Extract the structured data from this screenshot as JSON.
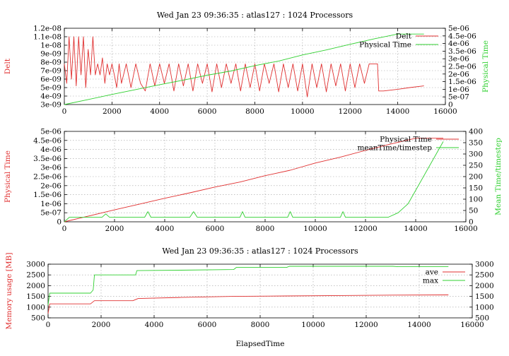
{
  "chart_data": [
    {
      "type": "line",
      "title": "Wed Jan 23 09:36:35 : atlas127 : 1024 Processors",
      "ylabel": "Delt",
      "y2label": "Physical Time",
      "xlim": [
        0,
        16000
      ],
      "ylim": [
        3e-09,
        1.2e-08
      ],
      "y2lim": [
        0,
        5e-06
      ],
      "xticks": [
        "0",
        "2000",
        "4000",
        "6000",
        "8000",
        "10000",
        "12000",
        "14000",
        "16000"
      ],
      "yticks": [
        "3e-09",
        "4e-09",
        "5e-09",
        "6e-09",
        "7e-09",
        "8e-09",
        "9e-09",
        "1e-08",
        "1.1e-08",
        "1.2e-08"
      ],
      "y2ticks": [
        "0",
        "5e-07",
        "1e-06",
        "1.5e-06",
        "2e-06",
        "2.5e-06",
        "3e-06",
        "3.5e-06",
        "4e-06",
        "4.5e-06",
        "5e-06"
      ],
      "grid": true,
      "legend_position": "top-right",
      "series": [
        {
          "name": "Delt",
          "color": "#e03030",
          "axis": "y",
          "x": [
            0,
            100,
            200,
            300,
            400,
            500,
            600,
            700,
            800,
            900,
            1000,
            1100,
            1200,
            1300,
            1400,
            1500,
            1600,
            1700,
            1800,
            1900,
            2000,
            2100,
            2200,
            2300,
            2400,
            2600,
            2800,
            3000,
            3200,
            3400,
            3600,
            3800,
            4000,
            4200,
            4400,
            4600,
            4800,
            5000,
            5200,
            5400,
            5600,
            5800,
            6000,
            6200,
            6400,
            6600,
            6800,
            7000,
            7200,
            7400,
            7600,
            7800,
            8000,
            8200,
            8400,
            8600,
            8800,
            9000,
            9200,
            9400,
            9600,
            9800,
            10000,
            10200,
            10400,
            10600,
            10800,
            11000,
            11200,
            11400,
            11600,
            11800,
            12000,
            12200,
            12400,
            12600,
            12800,
            13000,
            13150,
            13200,
            13400,
            14000,
            14500,
            15100
          ],
          "values": [
            7.8e-09,
            5.5e-09,
            1.1e-08,
            6e-09,
            1.1e-08,
            5.2e-09,
            1.1e-08,
            6.5e-09,
            1.1e-08,
            5e-09,
            9.5e-09,
            6.5e-09,
            1.1e-08,
            6.5e-09,
            7.8e-09,
            6.5e-09,
            8.5e-09,
            5.5e-09,
            7.8e-09,
            6.5e-09,
            7.8e-09,
            6.5e-09,
            5e-09,
            7.8e-09,
            5.5e-09,
            7.8e-09,
            5e-09,
            7.8e-09,
            5.5e-09,
            4.6e-09,
            7.8e-09,
            5.2e-09,
            7.8e-09,
            5.5e-09,
            7.8e-09,
            4.6e-09,
            7.8e-09,
            5.2e-09,
            7.8e-09,
            4.6e-09,
            7.8e-09,
            5.5e-09,
            7.8e-09,
            4.5e-09,
            7.8e-09,
            5e-09,
            7.8e-09,
            5.5e-09,
            7.8e-09,
            4.6e-09,
            7.8e-09,
            5e-09,
            7.8e-09,
            4.6e-09,
            7.8e-09,
            5.5e-09,
            7.8e-09,
            4.5e-09,
            7.8e-09,
            5e-09,
            7.8e-09,
            4.6e-09,
            7.8e-09,
            3.9e-09,
            7.8e-09,
            5e-09,
            7.8e-09,
            4.5e-09,
            7.8e-09,
            5.2e-09,
            7.8e-09,
            4.6e-09,
            7.8e-09,
            5e-09,
            7.8e-09,
            5.5e-09,
            7.8e-09,
            7.8e-09,
            7.8e-09,
            4.6e-09,
            4.6e-09,
            4.8e-09,
            5e-09,
            5.2e-09
          ]
        },
        {
          "name": "Physical Time",
          "color": "#30d030",
          "axis": "y2",
          "x": [
            0,
            1000,
            2000,
            3000,
            4000,
            5000,
            6000,
            7000,
            8000,
            9000,
            10000,
            11000,
            12000,
            13000,
            14000,
            15100
          ],
          "values": [
            0,
            3.3e-07,
            6.6e-07,
            9.8e-07,
            1.3e-06,
            1.6e-06,
            1.92e-06,
            2.2e-06,
            2.55e-06,
            2.85e-06,
            3.25e-06,
            3.58e-06,
            3.95e-06,
            4.3e-06,
            4.62e-06,
            4.62e-06
          ]
        }
      ]
    },
    {
      "type": "line",
      "title": "",
      "ylabel": "Physical Time",
      "y2label": "Mean Time/timestep",
      "xlim": [
        0,
        16000
      ],
      "ylim": [
        0,
        5e-06
      ],
      "y2lim": [
        0,
        400
      ],
      "xticks": [
        "0",
        "2000",
        "4000",
        "6000",
        "8000",
        "10000",
        "12000",
        "14000",
        "16000"
      ],
      "yticks": [
        "0",
        "5e-07",
        "1e-06",
        "1.5e-06",
        "2e-06",
        "2.5e-06",
        "3e-06",
        "3.5e-06",
        "4e-06",
        "4.5e-06",
        "5e-06"
      ],
      "y2ticks": [
        "0",
        "50",
        "100",
        "150",
        "200",
        "250",
        "300",
        "350",
        "400"
      ],
      "grid": true,
      "legend_position": "top-right",
      "series": [
        {
          "name": "Physical Time",
          "color": "#e03030",
          "axis": "y",
          "x": [
            0,
            1000,
            2000,
            3000,
            4000,
            5000,
            6000,
            7000,
            8000,
            9000,
            10000,
            11000,
            12000,
            13000,
            14000,
            15100
          ],
          "values": [
            0,
            3.3e-07,
            6.6e-07,
            9.8e-07,
            1.3e-06,
            1.6e-06,
            1.92e-06,
            2.2e-06,
            2.55e-06,
            2.85e-06,
            3.25e-06,
            3.58e-06,
            3.95e-06,
            4.3e-06,
            4.62e-06,
            4.62e-06
          ]
        },
        {
          "name": "meanTime/timestep",
          "color": "#30d030",
          "axis": "y2",
          "x": [
            0,
            200,
            1500,
            1650,
            1800,
            3200,
            3330,
            3450,
            5000,
            5150,
            5300,
            7000,
            7100,
            7200,
            8900,
            9000,
            9100,
            11000,
            11100,
            11200,
            12900,
            13300,
            13700,
            15100
          ],
          "values": [
            0,
            20,
            20,
            35,
            20,
            20,
            45,
            20,
            20,
            45,
            20,
            20,
            45,
            20,
            20,
            45,
            20,
            20,
            45,
            20,
            20,
            40,
            80,
            355
          ]
        }
      ]
    },
    {
      "type": "line",
      "title": "Wed Jan 23 09:36:35 : atlas127 : 1024 Processors",
      "xlabel": "ElapsedTime",
      "ylabel": "Memory usage [MB]",
      "y2label": "",
      "xlim": [
        0,
        16000
      ],
      "ylim": [
        500,
        3000
      ],
      "y2lim": [
        500,
        3000
      ],
      "xticks": [
        "0",
        "2000",
        "4000",
        "6000",
        "8000",
        "10000",
        "12000",
        "14000",
        "16000"
      ],
      "yticks": [
        "500",
        "1000",
        "1500",
        "2000",
        "2500",
        "3000"
      ],
      "y2ticks": [
        "500",
        "1000",
        "1500",
        "2000",
        "2500",
        "3000"
      ],
      "grid": true,
      "legend_position": "top-right",
      "series": [
        {
          "name": "ave",
          "color": "#e03030",
          "axis": "y",
          "x": [
            0,
            60,
            120,
            1600,
            1750,
            3200,
            3400,
            5000,
            7000,
            9000,
            11000,
            13000,
            15100
          ],
          "values": [
            700,
            1150,
            1150,
            1150,
            1300,
            1300,
            1400,
            1450,
            1500,
            1520,
            1540,
            1560,
            1570
          ]
        },
        {
          "name": "max",
          "color": "#30d030",
          "axis": "y",
          "x": [
            0,
            60,
            120,
            1600,
            1700,
            1750,
            3300,
            3350,
            5000,
            7000,
            7100,
            9000,
            9100,
            13000,
            13200,
            15100
          ],
          "values": [
            1100,
            1650,
            1650,
            1650,
            1800,
            2500,
            2500,
            2700,
            2720,
            2750,
            2850,
            2850,
            2900,
            2900,
            2880,
            2880
          ]
        }
      ]
    }
  ]
}
